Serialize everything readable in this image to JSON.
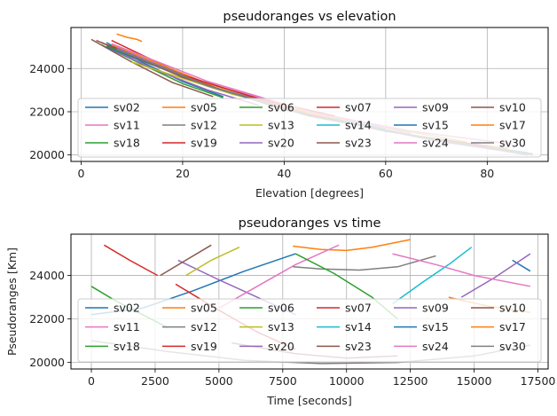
{
  "chart_data": [
    {
      "type": "line",
      "title": "pseudoranges vs elevation",
      "xlabel": "Elevation [degrees]",
      "ylabel": "",
      "xlim": [
        -2,
        92
      ],
      "ylim": [
        19700,
        25900
      ],
      "xticks": [
        0,
        20,
        40,
        60,
        80
      ],
      "yticks": [
        20000,
        22000,
        24000
      ],
      "grid": true,
      "legend": {
        "placement": "lower-center",
        "columns": 6
      },
      "series": [
        {
          "name": "sv02",
          "color": "#1f77b4",
          "x": [
            5,
            12,
            20,
            28
          ],
          "y": [
            25200,
            24300,
            23400,
            22700
          ]
        },
        {
          "name": "sv05",
          "color": "#ff7f0e",
          "x": [
            7,
            9,
            11,
            12
          ],
          "y": [
            25600,
            25450,
            25350,
            25250
          ]
        },
        {
          "name": "sv06",
          "color": "#2ca02c",
          "x": [
            4,
            12,
            20,
            28
          ],
          "y": [
            25100,
            24200,
            23300,
            22650
          ]
        },
        {
          "name": "sv07",
          "color": "#d62728",
          "x": [
            6,
            14,
            22,
            30
          ],
          "y": [
            25300,
            24400,
            23500,
            22800
          ]
        },
        {
          "name": "sv09",
          "color": "#9467bd",
          "x": [
            5,
            15,
            25,
            35
          ],
          "y": [
            25000,
            23900,
            23000,
            22300
          ]
        },
        {
          "name": "sv10",
          "color": "#8c564b",
          "x": [
            2,
            10,
            18,
            26
          ],
          "y": [
            25350,
            24300,
            23350,
            22700
          ]
        },
        {
          "name": "sv11",
          "color": "#e377c2",
          "x": [
            8,
            25,
            45,
            65,
            85
          ],
          "y": [
            24800,
            23300,
            22000,
            21100,
            20500
          ]
        },
        {
          "name": "sv12",
          "color": "#7f7f7f",
          "x": [
            8,
            25,
            45,
            65,
            88
          ],
          "y": [
            24700,
            23200,
            21900,
            20900,
            20000
          ]
        },
        {
          "name": "sv13",
          "color": "#bcbd22",
          "x": [
            10,
            30,
            50,
            76
          ],
          "y": [
            24300,
            22800,
            21700,
            20600
          ]
        },
        {
          "name": "sv14",
          "color": "#17becf",
          "x": [
            8,
            25,
            45,
            60
          ],
          "y": [
            24800,
            23300,
            21900,
            21200
          ]
        },
        {
          "name": "sv15",
          "color": "#1f77b4",
          "x": [
            5,
            25,
            45,
            70,
            88
          ],
          "y": [
            25000,
            23200,
            21800,
            20700,
            20100
          ]
        },
        {
          "name": "sv17",
          "color": "#ff7f0e",
          "x": [
            6,
            25,
            45,
            65,
            84
          ],
          "y": [
            25100,
            23300,
            21900,
            20900,
            20300
          ]
        },
        {
          "name": "sv18",
          "color": "#2ca02c",
          "x": [
            5,
            25,
            45,
            70,
            89
          ],
          "y": [
            25050,
            23200,
            21850,
            20700,
            20050
          ]
        },
        {
          "name": "sv19",
          "color": "#d62728",
          "x": [
            4,
            20,
            35,
            50
          ],
          "y": [
            25200,
            23700,
            22600,
            21800
          ]
        },
        {
          "name": "sv20",
          "color": "#9467bd",
          "x": [
            7,
            25,
            45,
            70,
            89
          ],
          "y": [
            24950,
            23200,
            21850,
            20650,
            20000
          ]
        },
        {
          "name": "sv23",
          "color": "#8c564b",
          "x": [
            3,
            20,
            40,
            60,
            80
          ],
          "y": [
            25300,
            23600,
            22100,
            21100,
            20400
          ]
        },
        {
          "name": "sv24",
          "color": "#e377c2",
          "x": [
            6,
            25,
            45,
            65
          ],
          "y": [
            25150,
            23400,
            22000,
            21000
          ]
        },
        {
          "name": "sv30",
          "color": "#7f7f7f",
          "x": [
            7,
            25,
            45,
            70,
            87
          ],
          "y": [
            24900,
            23200,
            21800,
            20700,
            20100
          ]
        }
      ]
    },
    {
      "type": "line",
      "title": "pseudoranges vs time",
      "xlabel": "Time [seconds]",
      "ylabel": "Pseudoranges [Km]",
      "xlim": [
        -800,
        17900
      ],
      "ylim": [
        19700,
        25900
      ],
      "xticks": [
        0,
        2500,
        5000,
        7500,
        10000,
        12500,
        15000,
        17500
      ],
      "yticks": [
        20000,
        22000,
        24000
      ],
      "grid": true,
      "legend": {
        "placement": "lower-center",
        "columns": 6
      },
      "series": [
        {
          "name": "sv02",
          "color": "#1f77b4",
          "x": [
            0,
            2000,
            4000,
            6000,
            8000
          ],
          "y": [
            22200,
            22500,
            23300,
            24200,
            25000
          ]
        },
        {
          "name": "sv05",
          "color": "#ff7f0e",
          "x": [
            7900,
            9000,
            10000,
            11000,
            12500
          ],
          "y": [
            25350,
            25200,
            25150,
            25300,
            25650
          ]
        },
        {
          "name": "sv06",
          "color": "#2ca02c",
          "x": [
            0,
            1000,
            2000,
            3000
          ],
          "y": [
            23500,
            22800,
            22200,
            21600
          ]
        },
        {
          "name": "sv07",
          "color": "#d62728",
          "x": [
            500,
            1500,
            2600
          ],
          "y": [
            25400,
            24700,
            24000
          ]
        },
        {
          "name": "sv09",
          "color": "#9467bd",
          "x": [
            3400,
            5000,
            6500,
            8000
          ],
          "y": [
            24700,
            23800,
            23000,
            22200
          ]
        },
        {
          "name": "sv10",
          "color": "#8c564b",
          "x": [
            2700,
            3700,
            4700
          ],
          "y": [
            24000,
            24700,
            25400
          ]
        },
        {
          "name": "sv11",
          "color": "#e377c2",
          "x": [
            5000,
            6500,
            8000,
            9700
          ],
          "y": [
            22500,
            23500,
            24500,
            25400
          ]
        },
        {
          "name": "sv12",
          "color": "#7f7f7f",
          "x": [
            7900,
            9000,
            10500,
            12000,
            13500
          ],
          "y": [
            24400,
            24300,
            24250,
            24400,
            24900
          ]
        },
        {
          "name": "sv13",
          "color": "#bcbd22",
          "x": [
            3700,
            4700,
            5800
          ],
          "y": [
            24000,
            24700,
            25300
          ]
        },
        {
          "name": "sv14",
          "color": "#17becf",
          "x": [
            11800,
            13000,
            14000,
            14900
          ],
          "y": [
            22700,
            23700,
            24500,
            25300
          ]
        },
        {
          "name": "sv15",
          "color": "#1f77b4",
          "x": [
            16500,
            17200
          ],
          "y": [
            24700,
            24200
          ]
        },
        {
          "name": "sv17",
          "color": "#ff7f0e",
          "x": [
            14000,
            15500,
            17200
          ],
          "y": [
            23000,
            22600,
            22300
          ]
        },
        {
          "name": "sv18",
          "color": "#2ca02c",
          "x": [
            8000,
            9500,
            11000,
            12000
          ],
          "y": [
            25000,
            24100,
            23000,
            22000
          ]
        },
        {
          "name": "sv19",
          "color": "#d62728",
          "x": [
            3300,
            5000,
            6500,
            8000
          ],
          "y": [
            23600,
            22400,
            21400,
            20600
          ]
        },
        {
          "name": "sv20",
          "color": "#9467bd",
          "x": [
            14500,
            15800,
            17200
          ],
          "y": [
            23000,
            23900,
            25000
          ]
        },
        {
          "name": "sv23",
          "color": "#8c564b",
          "x": [
            5500,
            8000,
            10000,
            12000
          ],
          "y": [
            20900,
            20400,
            20200,
            20300
          ]
        },
        {
          "name": "sv24",
          "color": "#e377c2",
          "x": [
            11800,
            13500,
            15000,
            17200
          ],
          "y": [
            25000,
            24500,
            24000,
            23500
          ]
        },
        {
          "name": "sv30",
          "color": "#7f7f7f",
          "x": [
            0,
            3000,
            6000,
            9000,
            12000,
            15000,
            17200
          ],
          "y": [
            21000,
            20500,
            20100,
            19950,
            20000,
            20300,
            20800
          ]
        }
      ]
    }
  ]
}
